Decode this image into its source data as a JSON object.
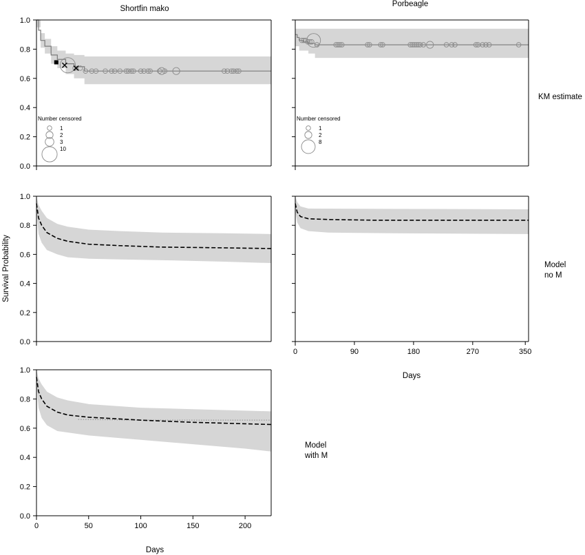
{
  "figure": {
    "column_titles": [
      "Shortfin mako",
      "Porbeagle"
    ],
    "row_labels": [
      [
        "KM estimate"
      ],
      [
        "Model",
        "no M"
      ],
      [
        "Model",
        "with M"
      ]
    ],
    "ylabel": "Survival Probability",
    "xlabel_porbeagle": "Days",
    "xlabel_mako": "Days"
  },
  "chart_data": [
    {
      "id": "mako-km",
      "type": "line",
      "species": "Shortfin mako",
      "row": "KM estimate",
      "xlim": [
        0,
        225
      ],
      "ylim": [
        0,
        1.0
      ],
      "yticks": [
        "0.0",
        "0.2",
        "0.4",
        "0.6",
        "0.8",
        "1.0"
      ],
      "xticks_shown": false,
      "estimate": [
        [
          0,
          1.0
        ],
        [
          2,
          0.93
        ],
        [
          4,
          0.86
        ],
        [
          8,
          0.82
        ],
        [
          14,
          0.76
        ],
        [
          20,
          0.73
        ],
        [
          28,
          0.7
        ],
        [
          36,
          0.68
        ],
        [
          46,
          0.65
        ],
        [
          225,
          0.65
        ]
      ],
      "lower": [
        [
          0,
          0.95
        ],
        [
          4,
          0.81
        ],
        [
          8,
          0.77
        ],
        [
          14,
          0.7
        ],
        [
          20,
          0.67
        ],
        [
          28,
          0.63
        ],
        [
          36,
          0.6
        ],
        [
          46,
          0.56
        ],
        [
          225,
          0.56
        ]
      ],
      "upper": [
        [
          0,
          1.0
        ],
        [
          4,
          0.91
        ],
        [
          8,
          0.87
        ],
        [
          14,
          0.82
        ],
        [
          20,
          0.79
        ],
        [
          28,
          0.77
        ],
        [
          36,
          0.76
        ],
        [
          46,
          0.75
        ],
        [
          225,
          0.75
        ]
      ],
      "censored": [
        {
          "x": 30,
          "y": 0.69,
          "n": 10
        },
        {
          "x": 120,
          "y": 0.65,
          "n": 2
        },
        {
          "x": 134,
          "y": 0.65,
          "n": 2
        },
        {
          "x": 37,
          "y": 0.67,
          "n": 1
        },
        {
          "x": 42,
          "y": 0.67,
          "n": 1
        },
        {
          "x": 47,
          "y": 0.65,
          "n": 1
        },
        {
          "x": 53,
          "y": 0.65,
          "n": 1
        },
        {
          "x": 57,
          "y": 0.65,
          "n": 1
        },
        {
          "x": 66,
          "y": 0.65,
          "n": 1
        },
        {
          "x": 72,
          "y": 0.65,
          "n": 1
        },
        {
          "x": 75,
          "y": 0.65,
          "n": 1
        },
        {
          "x": 80,
          "y": 0.65,
          "n": 1
        },
        {
          "x": 86,
          "y": 0.65,
          "n": 1
        },
        {
          "x": 88,
          "y": 0.65,
          "n": 1
        },
        {
          "x": 91,
          "y": 0.65,
          "n": 1
        },
        {
          "x": 93,
          "y": 0.65,
          "n": 1
        },
        {
          "x": 100,
          "y": 0.65,
          "n": 1
        },
        {
          "x": 103,
          "y": 0.65,
          "n": 1
        },
        {
          "x": 107,
          "y": 0.65,
          "n": 1
        },
        {
          "x": 109,
          "y": 0.65,
          "n": 1
        },
        {
          "x": 118,
          "y": 0.65,
          "n": 1
        },
        {
          "x": 123,
          "y": 0.65,
          "n": 1
        },
        {
          "x": 180,
          "y": 0.65,
          "n": 1
        },
        {
          "x": 183,
          "y": 0.65,
          "n": 1
        },
        {
          "x": 187,
          "y": 0.65,
          "n": 1
        },
        {
          "x": 189,
          "y": 0.65,
          "n": 1
        },
        {
          "x": 192,
          "y": 0.65,
          "n": 1
        },
        {
          "x": 194,
          "y": 0.65,
          "n": 1
        }
      ],
      "special_marks": [
        {
          "shape": "square",
          "x": 19,
          "y": 0.71
        },
        {
          "shape": "cross",
          "x": 27,
          "y": 0.69
        },
        {
          "shape": "cross",
          "x": 38,
          "y": 0.67
        }
      ],
      "legend": {
        "title": "Number censored",
        "entries": [
          "1",
          "2",
          "3",
          "10"
        ],
        "sizes": [
          1,
          2,
          3,
          10
        ],
        "position": "bottom-left"
      }
    },
    {
      "id": "porbeagle-km",
      "type": "line",
      "species": "Porbeagle",
      "row": "KM estimate",
      "xlim": [
        0,
        355
      ],
      "ylim": [
        0,
        1.0
      ],
      "xticks_shown": false,
      "estimate": [
        [
          0,
          0.9
        ],
        [
          3,
          0.88
        ],
        [
          6,
          0.86
        ],
        [
          12,
          0.85
        ],
        [
          20,
          0.84
        ],
        [
          30,
          0.83
        ],
        [
          355,
          0.83
        ]
      ],
      "lower": [
        [
          0,
          0.82
        ],
        [
          6,
          0.79
        ],
        [
          20,
          0.77
        ],
        [
          30,
          0.74
        ],
        [
          355,
          0.74
        ]
      ],
      "upper": [
        [
          0,
          0.94
        ],
        [
          355,
          0.94
        ]
      ],
      "censored": [
        {
          "x": 28,
          "y": 0.86,
          "n": 8
        },
        {
          "x": 205,
          "y": 0.83,
          "n": 2
        },
        {
          "x": 10,
          "y": 0.86,
          "n": 1
        },
        {
          "x": 13,
          "y": 0.86,
          "n": 1
        },
        {
          "x": 16,
          "y": 0.86,
          "n": 1
        },
        {
          "x": 19,
          "y": 0.85,
          "n": 1
        },
        {
          "x": 22,
          "y": 0.85,
          "n": 1
        },
        {
          "x": 25,
          "y": 0.85,
          "n": 1
        },
        {
          "x": 33,
          "y": 0.83,
          "n": 1
        },
        {
          "x": 62,
          "y": 0.83,
          "n": 1
        },
        {
          "x": 65,
          "y": 0.83,
          "n": 1
        },
        {
          "x": 68,
          "y": 0.83,
          "n": 1
        },
        {
          "x": 71,
          "y": 0.83,
          "n": 1
        },
        {
          "x": 110,
          "y": 0.83,
          "n": 1
        },
        {
          "x": 113,
          "y": 0.83,
          "n": 1
        },
        {
          "x": 130,
          "y": 0.83,
          "n": 1
        },
        {
          "x": 133,
          "y": 0.83,
          "n": 1
        },
        {
          "x": 175,
          "y": 0.83,
          "n": 1
        },
        {
          "x": 178,
          "y": 0.83,
          "n": 1
        },
        {
          "x": 181,
          "y": 0.83,
          "n": 1
        },
        {
          "x": 184,
          "y": 0.83,
          "n": 1
        },
        {
          "x": 187,
          "y": 0.83,
          "n": 1
        },
        {
          "x": 190,
          "y": 0.83,
          "n": 1
        },
        {
          "x": 195,
          "y": 0.83,
          "n": 1
        },
        {
          "x": 230,
          "y": 0.83,
          "n": 1
        },
        {
          "x": 238,
          "y": 0.83,
          "n": 1
        },
        {
          "x": 243,
          "y": 0.83,
          "n": 1
        },
        {
          "x": 275,
          "y": 0.83,
          "n": 1
        },
        {
          "x": 278,
          "y": 0.83,
          "n": 1
        },
        {
          "x": 285,
          "y": 0.83,
          "n": 1
        },
        {
          "x": 290,
          "y": 0.83,
          "n": 1
        },
        {
          "x": 295,
          "y": 0.83,
          "n": 1
        },
        {
          "x": 340,
          "y": 0.83,
          "n": 1
        }
      ],
      "special_marks": [],
      "legend": {
        "title": "Number censored",
        "entries": [
          "1",
          "2",
          "8"
        ],
        "sizes": [
          1,
          2,
          8
        ],
        "position": "bottom-left"
      }
    },
    {
      "id": "mako-noM",
      "type": "line",
      "species": "Shortfin mako",
      "row": "Model no M",
      "xlim": [
        0,
        225
      ],
      "ylim": [
        0,
        1.0
      ],
      "yticks": [
        "0.0",
        "0.2",
        "0.4",
        "0.6",
        "0.8",
        "1.0"
      ],
      "xticks_shown": false,
      "estimate": [
        [
          0,
          0.95
        ],
        [
          2,
          0.85
        ],
        [
          5,
          0.8
        ],
        [
          10,
          0.75
        ],
        [
          20,
          0.71
        ],
        [
          30,
          0.69
        ],
        [
          50,
          0.67
        ],
        [
          80,
          0.66
        ],
        [
          120,
          0.65
        ],
        [
          180,
          0.645
        ],
        [
          225,
          0.64
        ]
      ],
      "lower": [
        [
          0,
          0.9
        ],
        [
          2,
          0.74
        ],
        [
          5,
          0.68
        ],
        [
          10,
          0.63
        ],
        [
          20,
          0.6
        ],
        [
          30,
          0.58
        ],
        [
          50,
          0.57
        ],
        [
          80,
          0.565
        ],
        [
          120,
          0.56
        ],
        [
          180,
          0.55
        ],
        [
          225,
          0.54
        ]
      ],
      "upper": [
        [
          0,
          1.0
        ],
        [
          2,
          0.94
        ],
        [
          5,
          0.9
        ],
        [
          10,
          0.85
        ],
        [
          20,
          0.81
        ],
        [
          30,
          0.79
        ],
        [
          50,
          0.77
        ],
        [
          80,
          0.76
        ],
        [
          120,
          0.75
        ],
        [
          180,
          0.745
        ],
        [
          225,
          0.74
        ]
      ]
    },
    {
      "id": "porbeagle-noM",
      "type": "line",
      "species": "Porbeagle",
      "row": "Model no M",
      "xlim": [
        0,
        355
      ],
      "ylim": [
        0,
        1.0
      ],
      "xticks": [
        0,
        90,
        180,
        270,
        350
      ],
      "estimate": [
        [
          0,
          0.95
        ],
        [
          3,
          0.89
        ],
        [
          8,
          0.86
        ],
        [
          20,
          0.845
        ],
        [
          50,
          0.84
        ],
        [
          120,
          0.835
        ],
        [
          355,
          0.835
        ]
      ],
      "lower": [
        [
          0,
          0.9
        ],
        [
          3,
          0.82
        ],
        [
          8,
          0.78
        ],
        [
          20,
          0.76
        ],
        [
          50,
          0.75
        ],
        [
          150,
          0.745
        ],
        [
          355,
          0.74
        ]
      ],
      "upper": [
        [
          0,
          1.0
        ],
        [
          3,
          0.96
        ],
        [
          8,
          0.93
        ],
        [
          20,
          0.915
        ],
        [
          355,
          0.91
        ]
      ]
    },
    {
      "id": "mako-withM",
      "type": "line",
      "species": "Shortfin mako",
      "row": "Model with M",
      "xlim": [
        0,
        225
      ],
      "ylim": [
        0,
        1.0
      ],
      "yticks": [
        "0.0",
        "0.2",
        "0.4",
        "0.6",
        "0.8",
        "1.0"
      ],
      "xticks": [
        0,
        50,
        100,
        150,
        200
      ],
      "estimate": [
        [
          0,
          0.95
        ],
        [
          2,
          0.85
        ],
        [
          5,
          0.8
        ],
        [
          10,
          0.75
        ],
        [
          20,
          0.71
        ],
        [
          30,
          0.69
        ],
        [
          50,
          0.675
        ],
        [
          100,
          0.655
        ],
        [
          150,
          0.64
        ],
        [
          200,
          0.63
        ],
        [
          225,
          0.625
        ]
      ],
      "reference_dotted": [
        [
          40,
          0.66
        ],
        [
          100,
          0.655
        ],
        [
          225,
          0.655
        ]
      ],
      "lower": [
        [
          0,
          0.9
        ],
        [
          2,
          0.74
        ],
        [
          5,
          0.67
        ],
        [
          10,
          0.62
        ],
        [
          20,
          0.58
        ],
        [
          30,
          0.57
        ],
        [
          50,
          0.55
        ],
        [
          100,
          0.52
        ],
        [
          150,
          0.49
        ],
        [
          200,
          0.46
        ],
        [
          225,
          0.44
        ]
      ],
      "upper": [
        [
          0,
          1.0
        ],
        [
          2,
          0.94
        ],
        [
          5,
          0.9
        ],
        [
          10,
          0.85
        ],
        [
          20,
          0.81
        ],
        [
          30,
          0.79
        ],
        [
          50,
          0.765
        ],
        [
          100,
          0.74
        ],
        [
          150,
          0.73
        ],
        [
          200,
          0.72
        ],
        [
          225,
          0.715
        ]
      ]
    }
  ]
}
